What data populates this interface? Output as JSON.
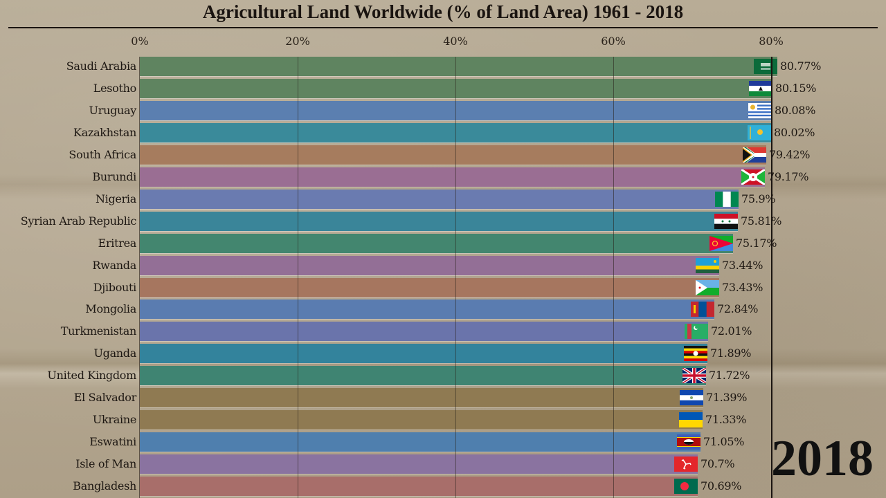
{
  "title": "Agricultural Land Worldwide (% of Land Area) 1961 - 2018",
  "year_label": "2018",
  "axis": {
    "ticks": [
      "0%",
      "20%",
      "40%",
      "60%",
      "80%"
    ]
  },
  "chart_data": {
    "type": "bar",
    "orientation": "horizontal",
    "title": "Agricultural Land Worldwide (% of Land Area) 1961 - 2018",
    "xlabel": "% of Land Area",
    "ylabel": "",
    "xlim": [
      0,
      80
    ],
    "xticks": [
      "0%",
      "20%",
      "40%",
      "60%",
      "80%"
    ],
    "grid": true,
    "annotation": "2018",
    "categories": [
      "Saudi Arabia",
      "Lesotho",
      "Uruguay",
      "Kazakhstan",
      "South Africa",
      "Burundi",
      "Nigeria",
      "Syrian Arab Republic",
      "Eritrea",
      "Rwanda",
      "Djibouti",
      "Mongolia",
      "Turkmenistan",
      "Uganda",
      "United Kingdom",
      "El Salvador",
      "Ukraine",
      "Eswatini",
      "Isle of Man",
      "Bangladesh"
    ],
    "values": [
      80.77,
      80.15,
      80.08,
      80.02,
      79.42,
      79.17,
      75.9,
      75.81,
      75.17,
      73.44,
      73.43,
      72.84,
      72.01,
      71.89,
      71.72,
      71.39,
      71.33,
      71.05,
      70.7,
      70.69
    ],
    "value_labels": [
      "80.77%",
      "80.15%",
      "80.08%",
      "80.02%",
      "79.42%",
      "79.17%",
      "75.9%",
      "75.81%",
      "75.17%",
      "73.44%",
      "73.43%",
      "72.84%",
      "72.01%",
      "71.89%",
      "71.72%",
      "71.39%",
      "71.33%",
      "71.05%",
      "70.7%",
      "70.69%"
    ],
    "colors": [
      "#5f8460",
      "#5f8460",
      "#5b7fb0",
      "#3a8a9a",
      "#a67c5e",
      "#9a6e93",
      "#6a7bb0",
      "#3a8599",
      "#43866f",
      "#936f96",
      "#a6765f",
      "#5a7cb0",
      "#6a74ab",
      "#33839c",
      "#3f8472",
      "#8f7a52",
      "#8f7a52",
      "#4f7fae",
      "#8a73a0",
      "#a86e6a"
    ]
  },
  "rows": [
    {
      "name": "Saudi Arabia",
      "value": 80.77,
      "label": "80.77%",
      "color": "#5f8460",
      "flag": "saudi-arabia-flag"
    },
    {
      "name": "Lesotho",
      "value": 80.15,
      "label": "80.15%",
      "color": "#5f8460",
      "flag": "lesotho-flag"
    },
    {
      "name": "Uruguay",
      "value": 80.08,
      "label": "80.08%",
      "color": "#5b7fb0",
      "flag": "uruguay-flag"
    },
    {
      "name": "Kazakhstan",
      "value": 80.02,
      "label": "80.02%",
      "color": "#3a8a9a",
      "flag": "kazakhstan-flag"
    },
    {
      "name": "South Africa",
      "value": 79.42,
      "label": "79.42%",
      "color": "#a67c5e",
      "flag": "south-africa-flag"
    },
    {
      "name": "Burundi",
      "value": 79.17,
      "label": "79.17%",
      "color": "#9a6e93",
      "flag": "burundi-flag"
    },
    {
      "name": "Nigeria",
      "value": 75.9,
      "label": "75.9%",
      "color": "#6a7bb0",
      "flag": "nigeria-flag"
    },
    {
      "name": "Syrian Arab Republic",
      "value": 75.81,
      "label": "75.81%",
      "color": "#3a8599",
      "flag": "syria-flag"
    },
    {
      "name": "Eritrea",
      "value": 75.17,
      "label": "75.17%",
      "color": "#43866f",
      "flag": "eritrea-flag"
    },
    {
      "name": "Rwanda",
      "value": 73.44,
      "label": "73.44%",
      "color": "#936f96",
      "flag": "rwanda-flag"
    },
    {
      "name": "Djibouti",
      "value": 73.43,
      "label": "73.43%",
      "color": "#a6765f",
      "flag": "djibouti-flag"
    },
    {
      "name": "Mongolia",
      "value": 72.84,
      "label": "72.84%",
      "color": "#5a7cb0",
      "flag": "mongolia-flag"
    },
    {
      "name": "Turkmenistan",
      "value": 72.01,
      "label": "72.01%",
      "color": "#6a74ab",
      "flag": "turkmenistan-flag"
    },
    {
      "name": "Uganda",
      "value": 71.89,
      "label": "71.89%",
      "color": "#33839c",
      "flag": "uganda-flag"
    },
    {
      "name": "United Kingdom",
      "value": 71.72,
      "label": "71.72%",
      "color": "#3f8472",
      "flag": "united-kingdom-flag"
    },
    {
      "name": "El Salvador",
      "value": 71.39,
      "label": "71.39%",
      "color": "#8f7a52",
      "flag": "el-salvador-flag"
    },
    {
      "name": "Ukraine",
      "value": 71.33,
      "label": "71.33%",
      "color": "#8f7a52",
      "flag": "ukraine-flag"
    },
    {
      "name": "Eswatini",
      "value": 71.05,
      "label": "71.05%",
      "color": "#4f7fae",
      "flag": "eswatini-flag"
    },
    {
      "name": "Isle of Man",
      "value": 70.7,
      "label": "70.7%",
      "color": "#8a73a0",
      "flag": "isle-of-man-flag"
    },
    {
      "name": "Bangladesh",
      "value": 70.69,
      "label": "70.69%",
      "color": "#a86e6a",
      "flag": "bangladesh-flag"
    }
  ]
}
